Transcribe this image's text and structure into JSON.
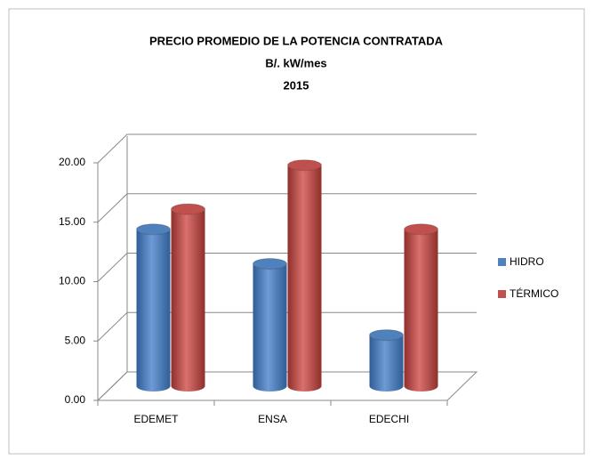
{
  "chart_data": {
    "type": "bar3d",
    "title": [
      "PRECIO PROMEDIO DE LA POTENCIA CONTRATADA",
      "B/. kW/mes",
      "2015"
    ],
    "categories": [
      "EDEMET",
      "ENSA",
      "EDECHI"
    ],
    "series": [
      {
        "name": "HIDRO",
        "color": "#4f81bd",
        "values": [
          13.2,
          10.3,
          4.3
        ]
      },
      {
        "name": "TÉRMICO",
        "color": "#c0504d",
        "values": [
          14.9,
          18.6,
          13.2
        ]
      }
    ],
    "ylim": [
      0,
      20
    ],
    "yticks": [
      {
        "value": 0,
        "label": "0.00"
      },
      {
        "value": 5,
        "label": "5.00"
      },
      {
        "value": 10,
        "label": "10.00"
      },
      {
        "value": 15,
        "label": "15.00"
      },
      {
        "value": 20,
        "label": "20.00"
      }
    ],
    "grid": true,
    "legend": "right"
  }
}
